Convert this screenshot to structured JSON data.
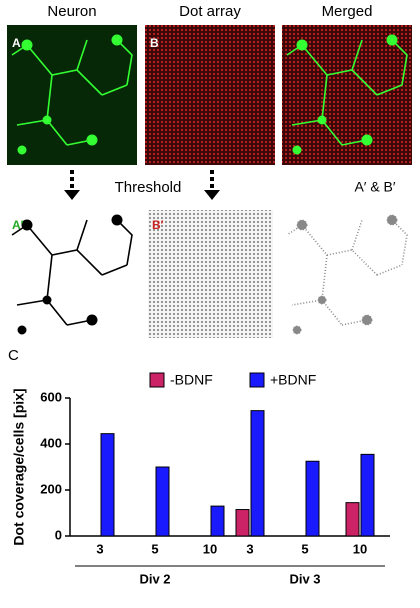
{
  "panels": {
    "top_headers": [
      "Neuron",
      "Dot array",
      "Merged"
    ],
    "label_a": "A",
    "label_b": "B",
    "threshold": "Threshold",
    "label_a_prime": "A′",
    "label_b_prime": "B′",
    "merged_prime": "A′ & B′",
    "label_c": "C"
  },
  "chart_data": {
    "type": "bar",
    "groups": [
      {
        "label": "Div 2",
        "categories": [
          "3",
          "5",
          "10"
        ]
      },
      {
        "label": "Div 3",
        "categories": [
          "3",
          "5",
          "10"
        ]
      }
    ],
    "ylabel": "Dot coverage/cells [pix]",
    "series": [
      {
        "name": "-BDNF",
        "color": "#cc2266",
        "values": [
          null,
          null,
          null,
          115,
          null,
          145
        ]
      },
      {
        "name": "+BDNF",
        "color": "#1a1aff",
        "values": [
          445,
          300,
          130,
          545,
          325,
          355
        ]
      }
    ],
    "ylim": [
      0,
      600
    ],
    "yticks": [
      0,
      200,
      400,
      600
    ]
  }
}
